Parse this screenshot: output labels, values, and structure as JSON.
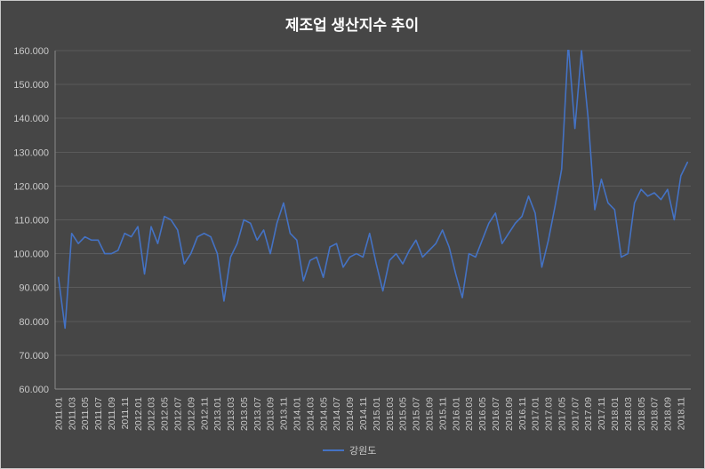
{
  "colors": {
    "background": "#464646",
    "gridline": "#5b5b5b",
    "axis_line": "#8a8a8a",
    "tick_text": "#c9c9c9",
    "title_text": "#ffffff"
  },
  "chart_data": {
    "type": "line",
    "title": "제조업 생산지수 추이",
    "legend_position": "bottom",
    "grid": true,
    "ylim": [
      60,
      160
    ],
    "ytick_step": 10,
    "ytick_labels": [
      "60.000",
      "70.000",
      "80.000",
      "90.000",
      "100.000",
      "110.000",
      "120.000",
      "130.000",
      "140.000",
      "150.000",
      "160.000"
    ],
    "x_label_every": 2,
    "x": [
      "2011.01",
      "2011.02",
      "2011.03",
      "2011.04",
      "2011.05",
      "2011.06",
      "2011.07",
      "2011.08",
      "2011.09",
      "2011.10",
      "2011.11",
      "2011.12",
      "2012.01",
      "2012.02",
      "2012.03",
      "2012.04",
      "2012.05",
      "2012.06",
      "2012.07",
      "2012.08",
      "2012.09",
      "2012.10",
      "2012.11",
      "2012.12",
      "2013.01",
      "2013.02",
      "2013.03",
      "2013.04",
      "2013.05",
      "2013.06",
      "2013.07",
      "2013.08",
      "2013.09",
      "2013.10",
      "2013.11",
      "2013.12",
      "2014.01",
      "2014.02",
      "2014.03",
      "2014.04",
      "2014.05",
      "2014.06",
      "2014.07",
      "2014.08",
      "2014.09",
      "2014.10",
      "2014.11",
      "2014.12",
      "2015.01",
      "2015.02",
      "2015.03",
      "2015.04",
      "2015.05",
      "2015.06",
      "2015.07",
      "2015.08",
      "2015.09",
      "2015.10",
      "2015.11",
      "2015.12",
      "2016.01",
      "2016.02",
      "2016.03",
      "2016.04",
      "2016.05",
      "2016.06",
      "2016.07",
      "2016.08",
      "2016.09",
      "2016.10",
      "2016.11",
      "2016.12",
      "2017.01",
      "2017.02",
      "2017.03",
      "2017.04",
      "2017.05",
      "2017.06",
      "2017.07",
      "2017.08",
      "2017.09",
      "2017.10",
      "2017.11",
      "2017.12",
      "2018.01",
      "2018.02",
      "2018.03",
      "2018.04",
      "2018.05",
      "2018.06",
      "2018.07",
      "2018.08",
      "2018.09",
      "2018.10",
      "2018.11",
      "2018.12"
    ],
    "series": [
      {
        "name": "강원도",
        "color": "#4472c4",
        "values": [
          93,
          78,
          106,
          103,
          105,
          104,
          104,
          100,
          100,
          101,
          106,
          105,
          108,
          94,
          108,
          103,
          111,
          110,
          107,
          97,
          100,
          105,
          106,
          105,
          100,
          86,
          99,
          103,
          110,
          109,
          104,
          107,
          100,
          109,
          115,
          106,
          104,
          92,
          98,
          99,
          93,
          102,
          103,
          96,
          99,
          100,
          99,
          106,
          97,
          89,
          98,
          100,
          97,
          101,
          104,
          99,
          101,
          103,
          107,
          102,
          94,
          87,
          100,
          99,
          104,
          109,
          112,
          103,
          106,
          109,
          111,
          117,
          112,
          96,
          104,
          114,
          125,
          162,
          137,
          160,
          140,
          113,
          122,
          115,
          113,
          99,
          100,
          115,
          119,
          117,
          118,
          116,
          119,
          110,
          123,
          127
        ]
      }
    ]
  }
}
